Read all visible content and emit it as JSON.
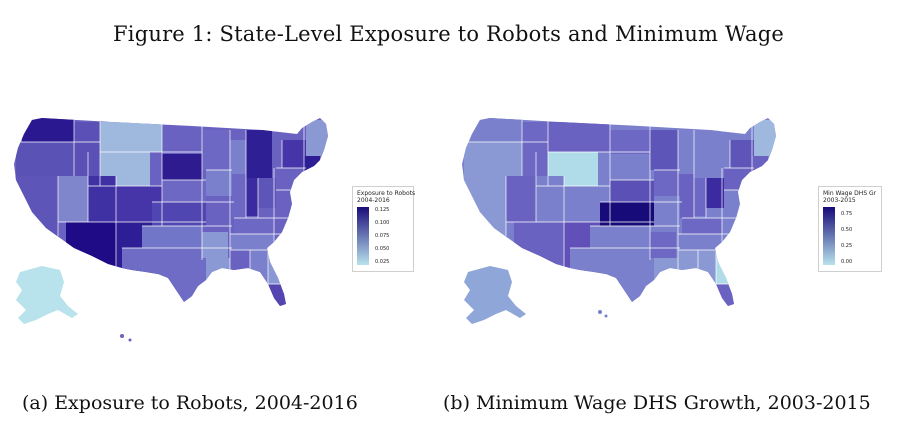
{
  "figure": {
    "title": "Figure 1: State-Level Exposure to Robots and Minimum Wage"
  },
  "panels": [
    {
      "caption": "(a) Exposure to Robots, 2004-2016",
      "legend": {
        "title_lines": [
          "Exposure to Robots",
          "2004-2016"
        ],
        "ticks": [
          "0.125",
          "0.100",
          "0.075",
          "0.050",
          "0.025"
        ],
        "color_low": "#b8e2ec",
        "color_high": "#1a0d7a"
      },
      "highlight_regions": {
        "washington": "#2a1890",
        "arizona": "#1e0b85",
        "new_mexico": "#2e1e95",
        "south_dakota": "#2d1b8f",
        "michigan": "#2e1f94",
        "alaska": "#b8e2ec",
        "montana_idaho_west": "#9fb8de",
        "wyoming": "#9fb8de",
        "florida": "#5545b0",
        "indiana": "#3a2ba0"
      }
    },
    {
      "caption": "(b) Minimum Wage DHS Growth, 2003-2015",
      "legend": {
        "title_lines": [
          "Min Wage DHS Gr",
          "2003-2015"
        ],
        "ticks": [
          "0.75",
          "0.50",
          "0.25",
          "0.00"
        ],
        "color_low": "#b8e2ec",
        "color_high": "#160b78"
      },
      "highlight_regions": {
        "kansas": "#160b78",
        "wyoming": "#b0dce9",
        "georgia": "#b0dce9",
        "ohio": "#3b2aa0",
        "alaska": "#8fa6d8",
        "maine": "#9fb8de"
      }
    }
  ]
}
